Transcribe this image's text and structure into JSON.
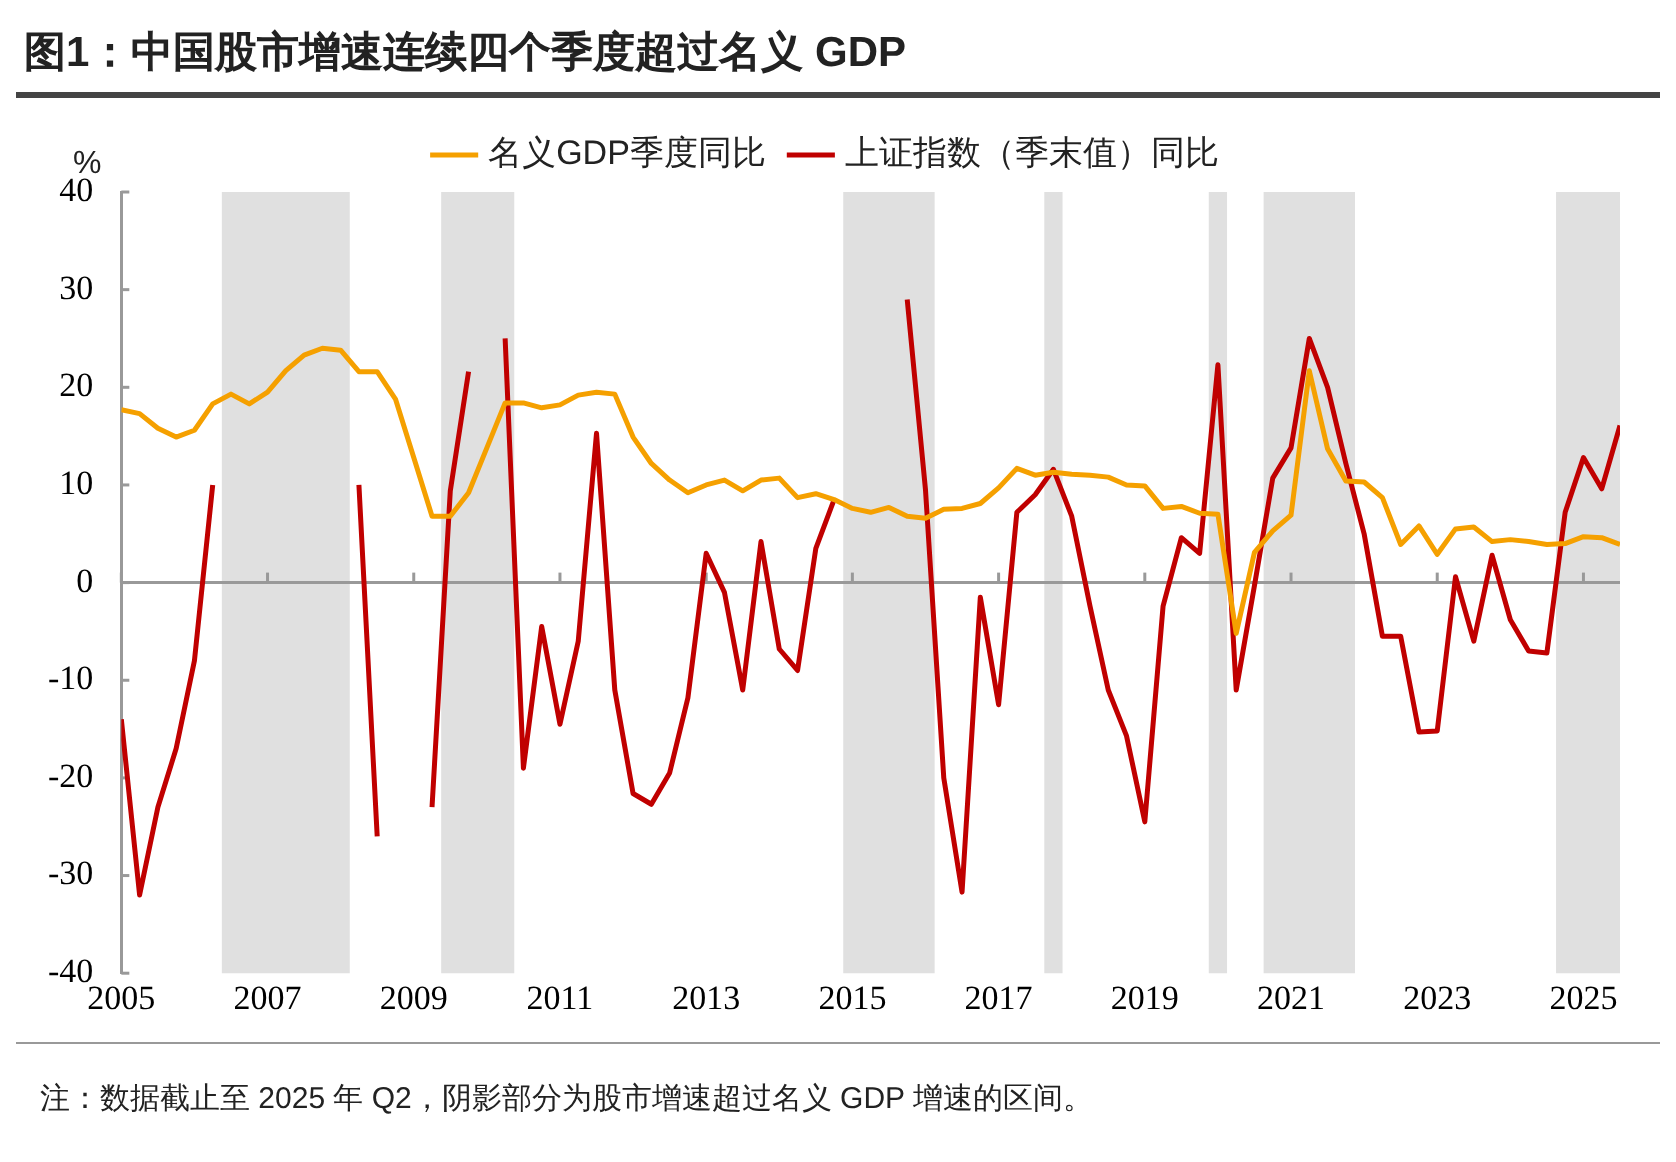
{
  "chart_data": {
    "type": "line",
    "title": "图1：中国股市增速连续四个季度超过名义 GDP",
    "ylabel": "%",
    "annotations": [
      "注：数据截止至 2025 年 Q2，阴影部分为股市增速超过名义 GDP 增速的区间。"
    ],
    "x": [
      2005,
      2005.25,
      2005.5,
      2005.75,
      2006,
      2006.25,
      2006.5,
      2006.75,
      2007,
      2007.25,
      2007.5,
      2007.75,
      2008,
      2008.25,
      2008.5,
      2008.75,
      2009,
      2009.25,
      2009.5,
      2009.75,
      2010,
      2010.25,
      2010.5,
      2010.75,
      2011,
      2011.25,
      2011.5,
      2011.75,
      2012,
      2012.25,
      2012.5,
      2012.75,
      2013,
      2013.25,
      2013.5,
      2013.75,
      2014,
      2014.25,
      2014.5,
      2014.75,
      2015,
      2015.25,
      2015.5,
      2015.75,
      2016,
      2016.25,
      2016.5,
      2016.75,
      2017,
      2017.25,
      2017.5,
      2017.75,
      2018,
      2018.25,
      2018.5,
      2018.75,
      2019,
      2019.25,
      2019.5,
      2019.75,
      2020,
      2020.25,
      2020.5,
      2020.75,
      2021,
      2021.25,
      2021.5,
      2021.75,
      2022,
      2022.25,
      2022.5,
      2022.75,
      2023,
      2023.25,
      2023.5,
      2023.75,
      2024,
      2024.25,
      2024.5,
      2024.75,
      2025,
      2025.25,
      2025.5
    ],
    "series": [
      {
        "name": "名义GDP季度同比",
        "color": "#f5a000",
        "values": [
          17.7,
          17.3,
          15.8,
          14.9,
          15.6,
          18.3,
          19.3,
          18.3,
          19.5,
          21.7,
          23.3,
          24,
          23.8,
          21.6,
          21.6,
          18.8,
          12.8,
          6.8,
          6.8,
          9.2,
          13.8,
          18.4,
          18.4,
          17.9,
          18.2,
          19.2,
          19.5,
          19.3,
          14.9,
          12.2,
          10.5,
          9.2,
          10,
          10.5,
          9.4,
          10.5,
          10.7,
          8.7,
          9.1,
          8.5,
          7.6,
          7.2,
          7.7,
          6.8,
          6.6,
          7.5,
          7.6,
          8.1,
          9.7,
          11.7,
          11,
          11.3,
          11.1,
          11,
          10.8,
          10,
          9.9,
          7.6,
          7.8,
          7.1,
          7,
          -5.2,
          3.1,
          5.3,
          6.9,
          21.7,
          13.7,
          10.4,
          10.3,
          8.7,
          3.9,
          5.8,
          2.9,
          5.5,
          5.7,
          4.2,
          4.4,
          4.2,
          3.9,
          4,
          4.7,
          4.6,
          3.9
        ]
      },
      {
        "name": "上证指数（季末值）同比",
        "color": "#c00000",
        "values": [
          -14,
          -32,
          -23,
          -17,
          -8,
          10,
          null,
          null,
          null,
          null,
          null,
          null,
          null,
          10,
          -26,
          null,
          null,
          -23,
          9.4,
          21.6,
          null,
          25,
          -19,
          -4.5,
          -14.5,
          -6,
          15.3,
          -11,
          -21.6,
          -22.7,
          -19.5,
          -11.8,
          3,
          -1,
          -11,
          4.2,
          -6.8,
          -9,
          3.5,
          8.5,
          null,
          null,
          null,
          29,
          9.5,
          -20,
          -31.7,
          -1.5,
          -12.5,
          7.2,
          9,
          11.6,
          6.8,
          -2.4,
          -11,
          -15.7,
          -24.5,
          -2.4,
          4.6,
          3,
          22.3,
          -11,
          -0.3,
          10.7,
          13.8,
          25,
          20,
          12.2,
          5,
          -5.5,
          -5.5,
          -15.3,
          -15.2,
          0.6,
          -6,
          2.8,
          -3.8,
          -7,
          -7.2,
          7.2,
          12.8,
          9.6,
          16.1
        ]
      }
    ],
    "xlim": [
      2005,
      2025.5
    ],
    "xticks": [
      2005,
      2007,
      2009,
      2011,
      2013,
      2015,
      2017,
      2019,
      2021,
      2023,
      2025
    ],
    "ylim": [
      -40,
      40
    ],
    "yticks": [
      -40,
      -30,
      -20,
      -10,
      0,
      10,
      20,
      30,
      40
    ],
    "bands": [
      {
        "axis": "x",
        "from": 2006.375,
        "to": 2008.125,
        "color": "#e0e0e0"
      },
      {
        "axis": "x",
        "from": 2009.375,
        "to": 2010.375,
        "color": "#e0e0e0"
      },
      {
        "axis": "x",
        "from": 2014.875,
        "to": 2016.125,
        "color": "#e0e0e0"
      },
      {
        "axis": "x",
        "from": 2017.625,
        "to": 2017.875,
        "color": "#e0e0e0"
      },
      {
        "axis": "x",
        "from": 2019.875,
        "to": 2020.125,
        "color": "#e0e0e0"
      },
      {
        "axis": "x",
        "from": 2020.625,
        "to": 2021.875,
        "color": "#e0e0e0"
      },
      {
        "axis": "x",
        "from": 2024.625,
        "to": 2025.5,
        "color": "#e0e0e0"
      }
    ],
    "ref_lines": [
      {
        "axis": "y",
        "value": 0,
        "color": "#999999"
      }
    ],
    "grid": false,
    "legend": "top",
    "marker": "none",
    "line_style": "solid"
  }
}
